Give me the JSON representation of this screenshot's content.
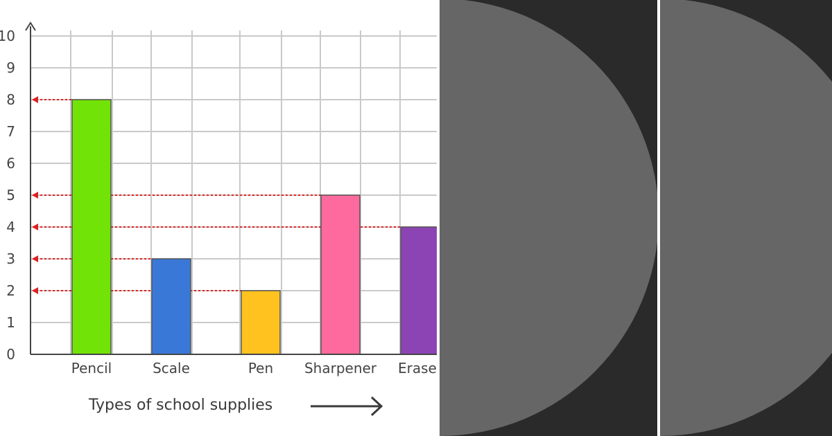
{
  "chart_data": {
    "type": "bar",
    "categories": [
      "Pencil",
      "Scale",
      "Pen",
      "Sharpener",
      "Eraser"
    ],
    "values": [
      8,
      3,
      2,
      5,
      4
    ],
    "colors": [
      "#72e306",
      "#3a78d8",
      "#ffc21e",
      "#ff6a9e",
      "#8c44b4"
    ],
    "xlabel": "Types of school supplies",
    "ylabel": "",
    "ylim": [
      0,
      10
    ],
    "yticks": [
      "0",
      "1",
      "2",
      "3",
      "4",
      "5",
      "6",
      "7",
      "8",
      "9",
      "10"
    ],
    "grid": true,
    "value_guides": [
      8,
      5,
      4,
      3,
      2
    ],
    "guide_color": "#e02020"
  },
  "panels": {
    "dark_color": "#2a2a2a",
    "disc_color": "#666666"
  }
}
